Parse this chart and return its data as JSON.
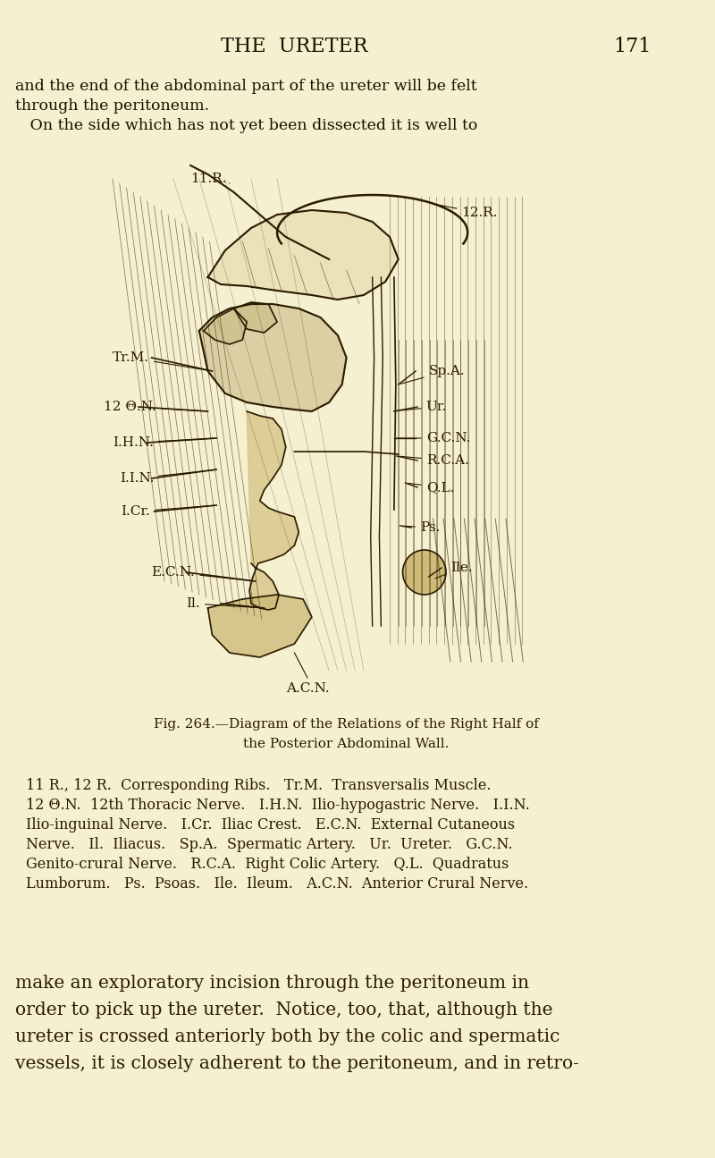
{
  "bg_color": "#f5f0d0",
  "page_title": "THE  URETER",
  "page_number": "171",
  "title_fontsize": 16,
  "page_num_fontsize": 16,
  "top_text_lines": [
    "and the end of the abdominal part of the ureter will be felt",
    "through the peritoneum.",
    "   On the side which has not yet been dissected it is well to"
  ],
  "fig_caption_line1": "Fig. 264.—Diagram of the Relations of the Right Half of",
  "fig_caption_line2": "the Posterior Abdominal Wall.",
  "legend_text": "11 R., 12 R.  Corresponding Ribs.   Tr.M.  Transversalis Muscle.\n12 Θ.N.  12th Thoracic Nerve.   I.H.N.  Ilio-hypogastric Nerve.   I.I.N.\nIlio-inguinal Nerve.   I.Cr.  Iliac Crest.   E.C.N.  External Cutaneous\nNerve.   Il.  Iliacus.   Sp.A.  Spermatic Artery.   Ur.  Ureter.   G.C.N.\nGenito-crural Nerve.   R.C.A.  Right Colic Artery.   Q.L.  Quadratus\nLumborum.   Ps.  Psoas.   Ile.  Ileum.   A.C.N.  Anterior Crural Nerve.",
  "bottom_text_lines": [
    "make an exploratory incision through the peritoneum in",
    "order to pick up the ureter.  Notice, too, that, although the",
    "ureter is crossed anteriorly both by the colic and spermatic",
    "vessels, it is closely adherent to the peritoneum, and in retro-"
  ],
  "text_color": "#1a1000",
  "ink_color": "#2a1a00"
}
